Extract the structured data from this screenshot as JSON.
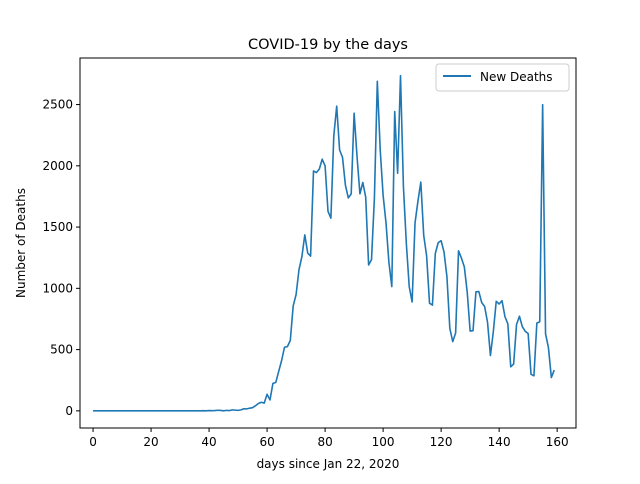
{
  "chart_data": {
    "type": "line",
    "title": "COVID-19 by the days",
    "xlabel": "days since Jan 22, 2020",
    "ylabel": "Number of Deaths",
    "xlim": [
      -4.5,
      166.5
    ],
    "ylim": [
      -140,
      2880
    ],
    "xticks": [
      0,
      20,
      40,
      60,
      80,
      100,
      120,
      140,
      160
    ],
    "yticks": [
      0,
      500,
      1000,
      1500,
      2000,
      2500
    ],
    "grid": false,
    "legend_position": "top-right",
    "series": [
      {
        "name": "New Deaths",
        "color": "#1f77b4",
        "x": [
          0,
          1,
          2,
          3,
          4,
          5,
          6,
          7,
          8,
          9,
          10,
          11,
          12,
          13,
          14,
          15,
          16,
          17,
          18,
          19,
          20,
          21,
          22,
          23,
          24,
          25,
          26,
          27,
          28,
          29,
          30,
          31,
          32,
          33,
          34,
          35,
          36,
          37,
          38,
          39,
          40,
          41,
          42,
          43,
          44,
          45,
          46,
          47,
          48,
          49,
          50,
          51,
          52,
          53,
          54,
          55,
          56,
          57,
          58,
          59,
          60,
          61,
          62,
          63,
          64,
          65,
          66,
          67,
          68,
          69,
          70,
          71,
          72,
          73,
          74,
          75,
          76,
          77,
          78,
          79,
          80,
          81,
          82,
          83,
          84,
          85,
          86,
          87,
          88,
          89,
          90,
          91,
          92,
          93,
          94,
          95,
          96,
          97,
          98,
          99,
          100,
          101,
          102,
          103,
          104,
          105,
          106,
          107,
          108,
          109,
          110,
          111,
          112,
          113,
          114,
          115,
          116,
          117,
          118,
          119,
          120,
          121,
          122,
          123,
          124,
          125,
          126,
          127,
          128,
          129,
          130,
          131,
          132,
          133,
          134,
          135,
          136,
          137,
          138,
          139,
          140,
          141,
          142,
          143,
          144,
          145,
          146,
          147,
          148,
          149,
          150,
          151,
          152,
          153,
          154,
          155,
          156,
          157,
          158,
          159
        ],
        "y": [
          0,
          0,
          0,
          0,
          0,
          0,
          0,
          0,
          0,
          0,
          0,
          0,
          0,
          0,
          0,
          0,
          0,
          0,
          0,
          0,
          0,
          0,
          0,
          0,
          0,
          0,
          0,
          0,
          0,
          0,
          0,
          0,
          0,
          0,
          0,
          0,
          0,
          0,
          1,
          0,
          2,
          1,
          2,
          5,
          3,
          0,
          4,
          2,
          8,
          6,
          4,
          8,
          17,
          16,
          22,
          26,
          42,
          60,
          70,
          63,
          135,
          89,
          223,
          232,
          322,
          410,
          519,
          524,
          574,
          856,
          949,
          1152,
          1258,
          1436,
          1288,
          1263,
          1958,
          1945,
          1973,
          2054,
          1999,
          1629,
          1573,
          2245,
          2487,
          2129,
          2070,
          1843,
          1738,
          1771,
          2430,
          2078,
          1771,
          1864,
          1744,
          1191,
          1234,
          1738,
          2690,
          2131,
          1759,
          1534,
          1212,
          1014,
          2443,
          1940,
          2736,
          1830,
          1368,
          1014,
          889,
          1533,
          1711,
          1867,
          1432,
          1265,
          879,
          863,
          1285,
          1373,
          1389,
          1296,
          1096,
          673,
          565,
          635,
          1306,
          1247,
          1175,
          968,
          651,
          654,
          972,
          974,
          883,
          852,
          723,
          451,
          647,
          894,
          872,
          899,
          769,
          710,
          359,
          382,
          705,
          772,
          687,
          649,
          631,
          298,
          286,
          716,
          727,
          2499,
          629,
          516,
          272,
          333
        ]
      }
    ]
  }
}
